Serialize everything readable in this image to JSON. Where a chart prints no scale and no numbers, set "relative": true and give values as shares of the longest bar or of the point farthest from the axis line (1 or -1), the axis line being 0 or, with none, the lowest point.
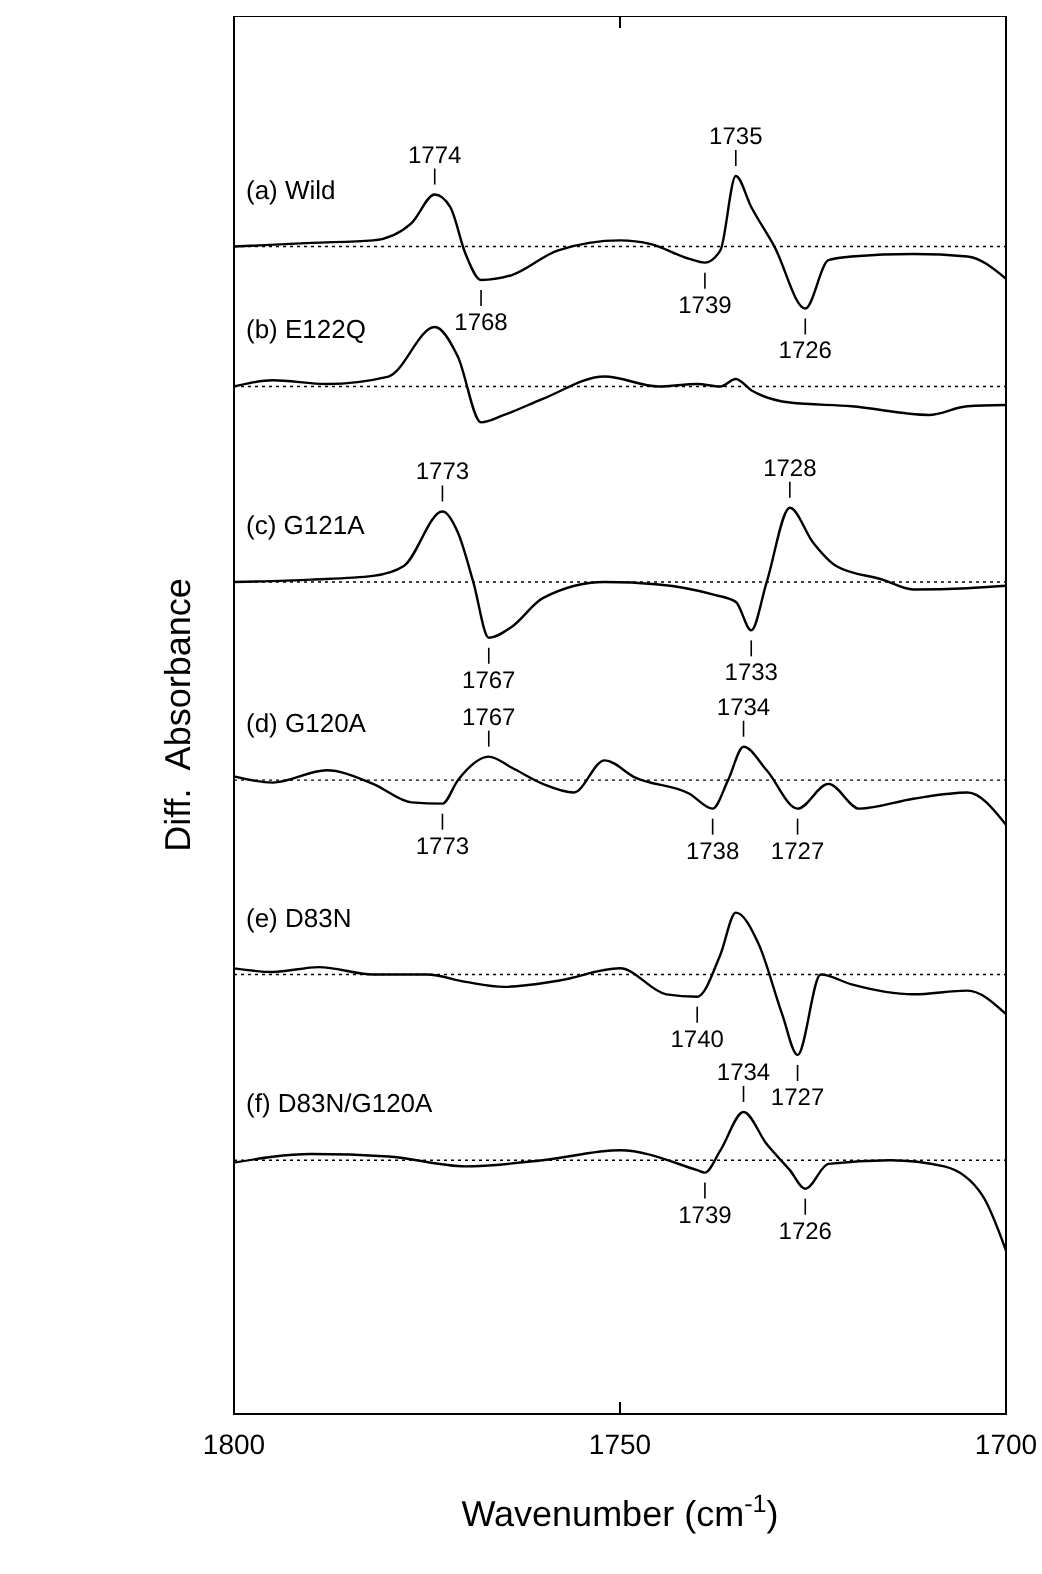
{
  "chart_data": {
    "type": "line",
    "relative": true,
    "xlabel": "Wavenumber (cm$^{-1}$)",
    "ylabel": "Diff.  Absorbance",
    "xlim": [
      1800,
      1700
    ],
    "xticks": [
      1800,
      1750,
      1700
    ],
    "grid": false,
    "marker": "none",
    "line_style": "solid",
    "series": [
      {
        "name": "(a) Wild",
        "color": "#000000",
        "x": [
          1800,
          1790,
          1782,
          1777,
          1774,
          1772,
          1770,
          1768,
          1764,
          1758,
          1750,
          1746,
          1741,
          1739,
          1737,
          1735,
          1733,
          1730,
          1726,
          1723,
          1720,
          1712,
          1705,
          1700
        ],
        "values": [
          0.943,
          0.946,
          0.948,
          0.962,
          0.985,
          0.975,
          0.937,
          0.916,
          0.92,
          0.94,
          0.948,
          0.945,
          0.933,
          0.93,
          0.94,
          1.0,
          0.975,
          0.943,
          0.893,
          0.932,
          0.935,
          0.937,
          0.935,
          0.917
        ]
      },
      {
        "name": "(b) E122Q",
        "color": "#000000",
        "x": [
          1800,
          1795,
          1788,
          1780,
          1774,
          1771,
          1768,
          1765,
          1760,
          1752,
          1745,
          1740,
          1737,
          1735,
          1733,
          1728,
          1720,
          1710,
          1705,
          1700
        ],
        "values": [
          0.83,
          0.835,
          0.832,
          0.838,
          0.878,
          0.854,
          0.801,
          0.807,
          0.82,
          0.838,
          0.83,
          0.832,
          0.83,
          0.836,
          0.827,
          0.817,
          0.814,
          0.807,
          0.814,
          0.815
        ]
      },
      {
        "name": "(c) G121A",
        "color": "#000000",
        "x": [
          1800,
          1790,
          1782,
          1778,
          1773,
          1771,
          1769,
          1767,
          1764,
          1760,
          1752,
          1745,
          1738,
          1735,
          1733,
          1731,
          1728,
          1725,
          1722,
          1716,
          1712,
          1705,
          1700
        ],
        "values": [
          0.672,
          0.674,
          0.677,
          0.685,
          0.729,
          0.712,
          0.672,
          0.627,
          0.636,
          0.659,
          0.672,
          0.67,
          0.662,
          0.656,
          0.633,
          0.672,
          0.732,
          0.704,
          0.685,
          0.674,
          0.666,
          0.667,
          0.669
        ]
      },
      {
        "name": "(d) G120A",
        "color": "#000000",
        "x": [
          1800,
          1795,
          1788,
          1782,
          1777,
          1773,
          1771,
          1767,
          1764,
          1760,
          1756,
          1752,
          1748,
          1741,
          1738,
          1736,
          1734,
          1731,
          1727,
          1723,
          1719,
          1712,
          1705,
          1700
        ],
        "values": [
          0.515,
          0.51,
          0.52,
          0.509,
          0.494,
          0.493,
          0.512,
          0.531,
          0.522,
          0.509,
          0.502,
          0.528,
          0.514,
          0.501,
          0.489,
          0.512,
          0.539,
          0.52,
          0.489,
          0.509,
          0.489,
          0.497,
          0.502,
          0.476
        ]
      },
      {
        "name": "(e) D83N",
        "color": "#000000",
        "x": [
          1800,
          1795,
          1789,
          1782,
          1775,
          1770,
          1765,
          1758,
          1750,
          1744,
          1740,
          1737,
          1735,
          1732,
          1729,
          1727,
          1724,
          1720,
          1712,
          1705,
          1700
        ],
        "values": [
          0.36,
          0.357,
          0.361,
          0.355,
          0.355,
          0.349,
          0.345,
          0.35,
          0.36,
          0.339,
          0.337,
          0.371,
          0.405,
          0.379,
          0.323,
          0.29,
          0.355,
          0.347,
          0.339,
          0.342,
          0.323
        ]
      },
      {
        "name": "(f) D83N/G120A",
        "color": "#000000",
        "x": [
          1800,
          1790,
          1780,
          1770,
          1760,
          1750,
          1740,
          1739,
          1737,
          1734,
          1731,
          1728,
          1726,
          1723,
          1715,
          1708,
          1703,
          1700
        ],
        "values": [
          0.203,
          0.21,
          0.208,
          0.2,
          0.205,
          0.213,
          0.197,
          0.195,
          0.213,
          0.244,
          0.218,
          0.197,
          0.182,
          0.202,
          0.205,
          0.2,
          0.176,
          0.132
        ]
      }
    ],
    "ref_lines": [
      {
        "axis": "y",
        "value": 0.943,
        "line_style": "dotted"
      },
      {
        "axis": "y",
        "value": 0.83,
        "line_style": "dotted"
      },
      {
        "axis": "y",
        "value": 0.672,
        "line_style": "dotted"
      },
      {
        "axis": "y",
        "value": 0.512,
        "line_style": "dotted"
      },
      {
        "axis": "y",
        "value": 0.355,
        "line_style": "dotted"
      },
      {
        "axis": "y",
        "value": 0.205,
        "line_style": "dotted"
      }
    ],
    "annotations": [
      {
        "text": "1774",
        "x": 1774,
        "y": 0.985
      },
      {
        "text": "1768",
        "x": 1768,
        "y": 0.916
      },
      {
        "text": "1739",
        "x": 1739,
        "y": 0.93
      },
      {
        "text": "1735",
        "x": 1735,
        "y": 1.0
      },
      {
        "text": "1726",
        "x": 1726,
        "y": 0.893
      },
      {
        "text": "1773",
        "x": 1773,
        "y": 0.729
      },
      {
        "text": "1767",
        "x": 1767,
        "y": 0.627
      },
      {
        "text": "1733",
        "x": 1733,
        "y": 0.633
      },
      {
        "text": "1728",
        "x": 1728,
        "y": 0.732
      },
      {
        "text": "1767",
        "x": 1767,
        "y": 0.531
      },
      {
        "text": "1773",
        "x": 1773,
        "y": 0.493
      },
      {
        "text": "1734",
        "x": 1734,
        "y": 0.539
      },
      {
        "text": "1738",
        "x": 1738,
        "y": 0.489
      },
      {
        "text": "1727",
        "x": 1727,
        "y": 0.489
      },
      {
        "text": "1740",
        "x": 1740,
        "y": 0.337
      },
      {
        "text": "1727",
        "x": 1727,
        "y": 0.29
      },
      {
        "text": "1734",
        "x": 1734,
        "y": 0.244
      },
      {
        "text": "1739",
        "x": 1739,
        "y": 0.195
      },
      {
        "text": "1726",
        "x": 1726,
        "y": 0.182
      }
    ]
  }
}
